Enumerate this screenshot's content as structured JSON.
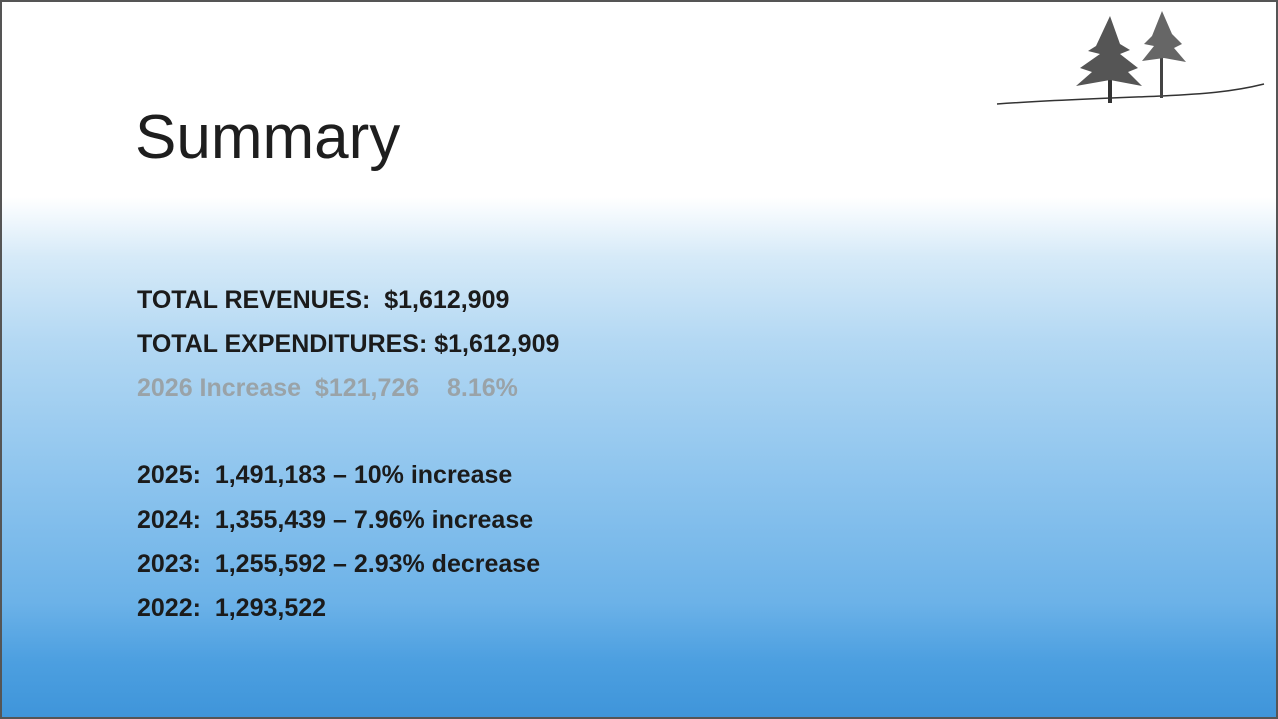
{
  "title": "Summary",
  "totals": [
    "TOTAL REVENUES:  $1,612,909",
    "TOTAL EXPENDITURES: $1,612,909"
  ],
  "increase": "2026 Increase  $121,726    8.16%",
  "history": [
    "2025:  1,491,183 – 10% increase",
    "2024:  1,355,439 – 7.96% increase",
    "2023:  1,255,592 – 2.93% decrease",
    "2022:  1,293,522"
  ]
}
